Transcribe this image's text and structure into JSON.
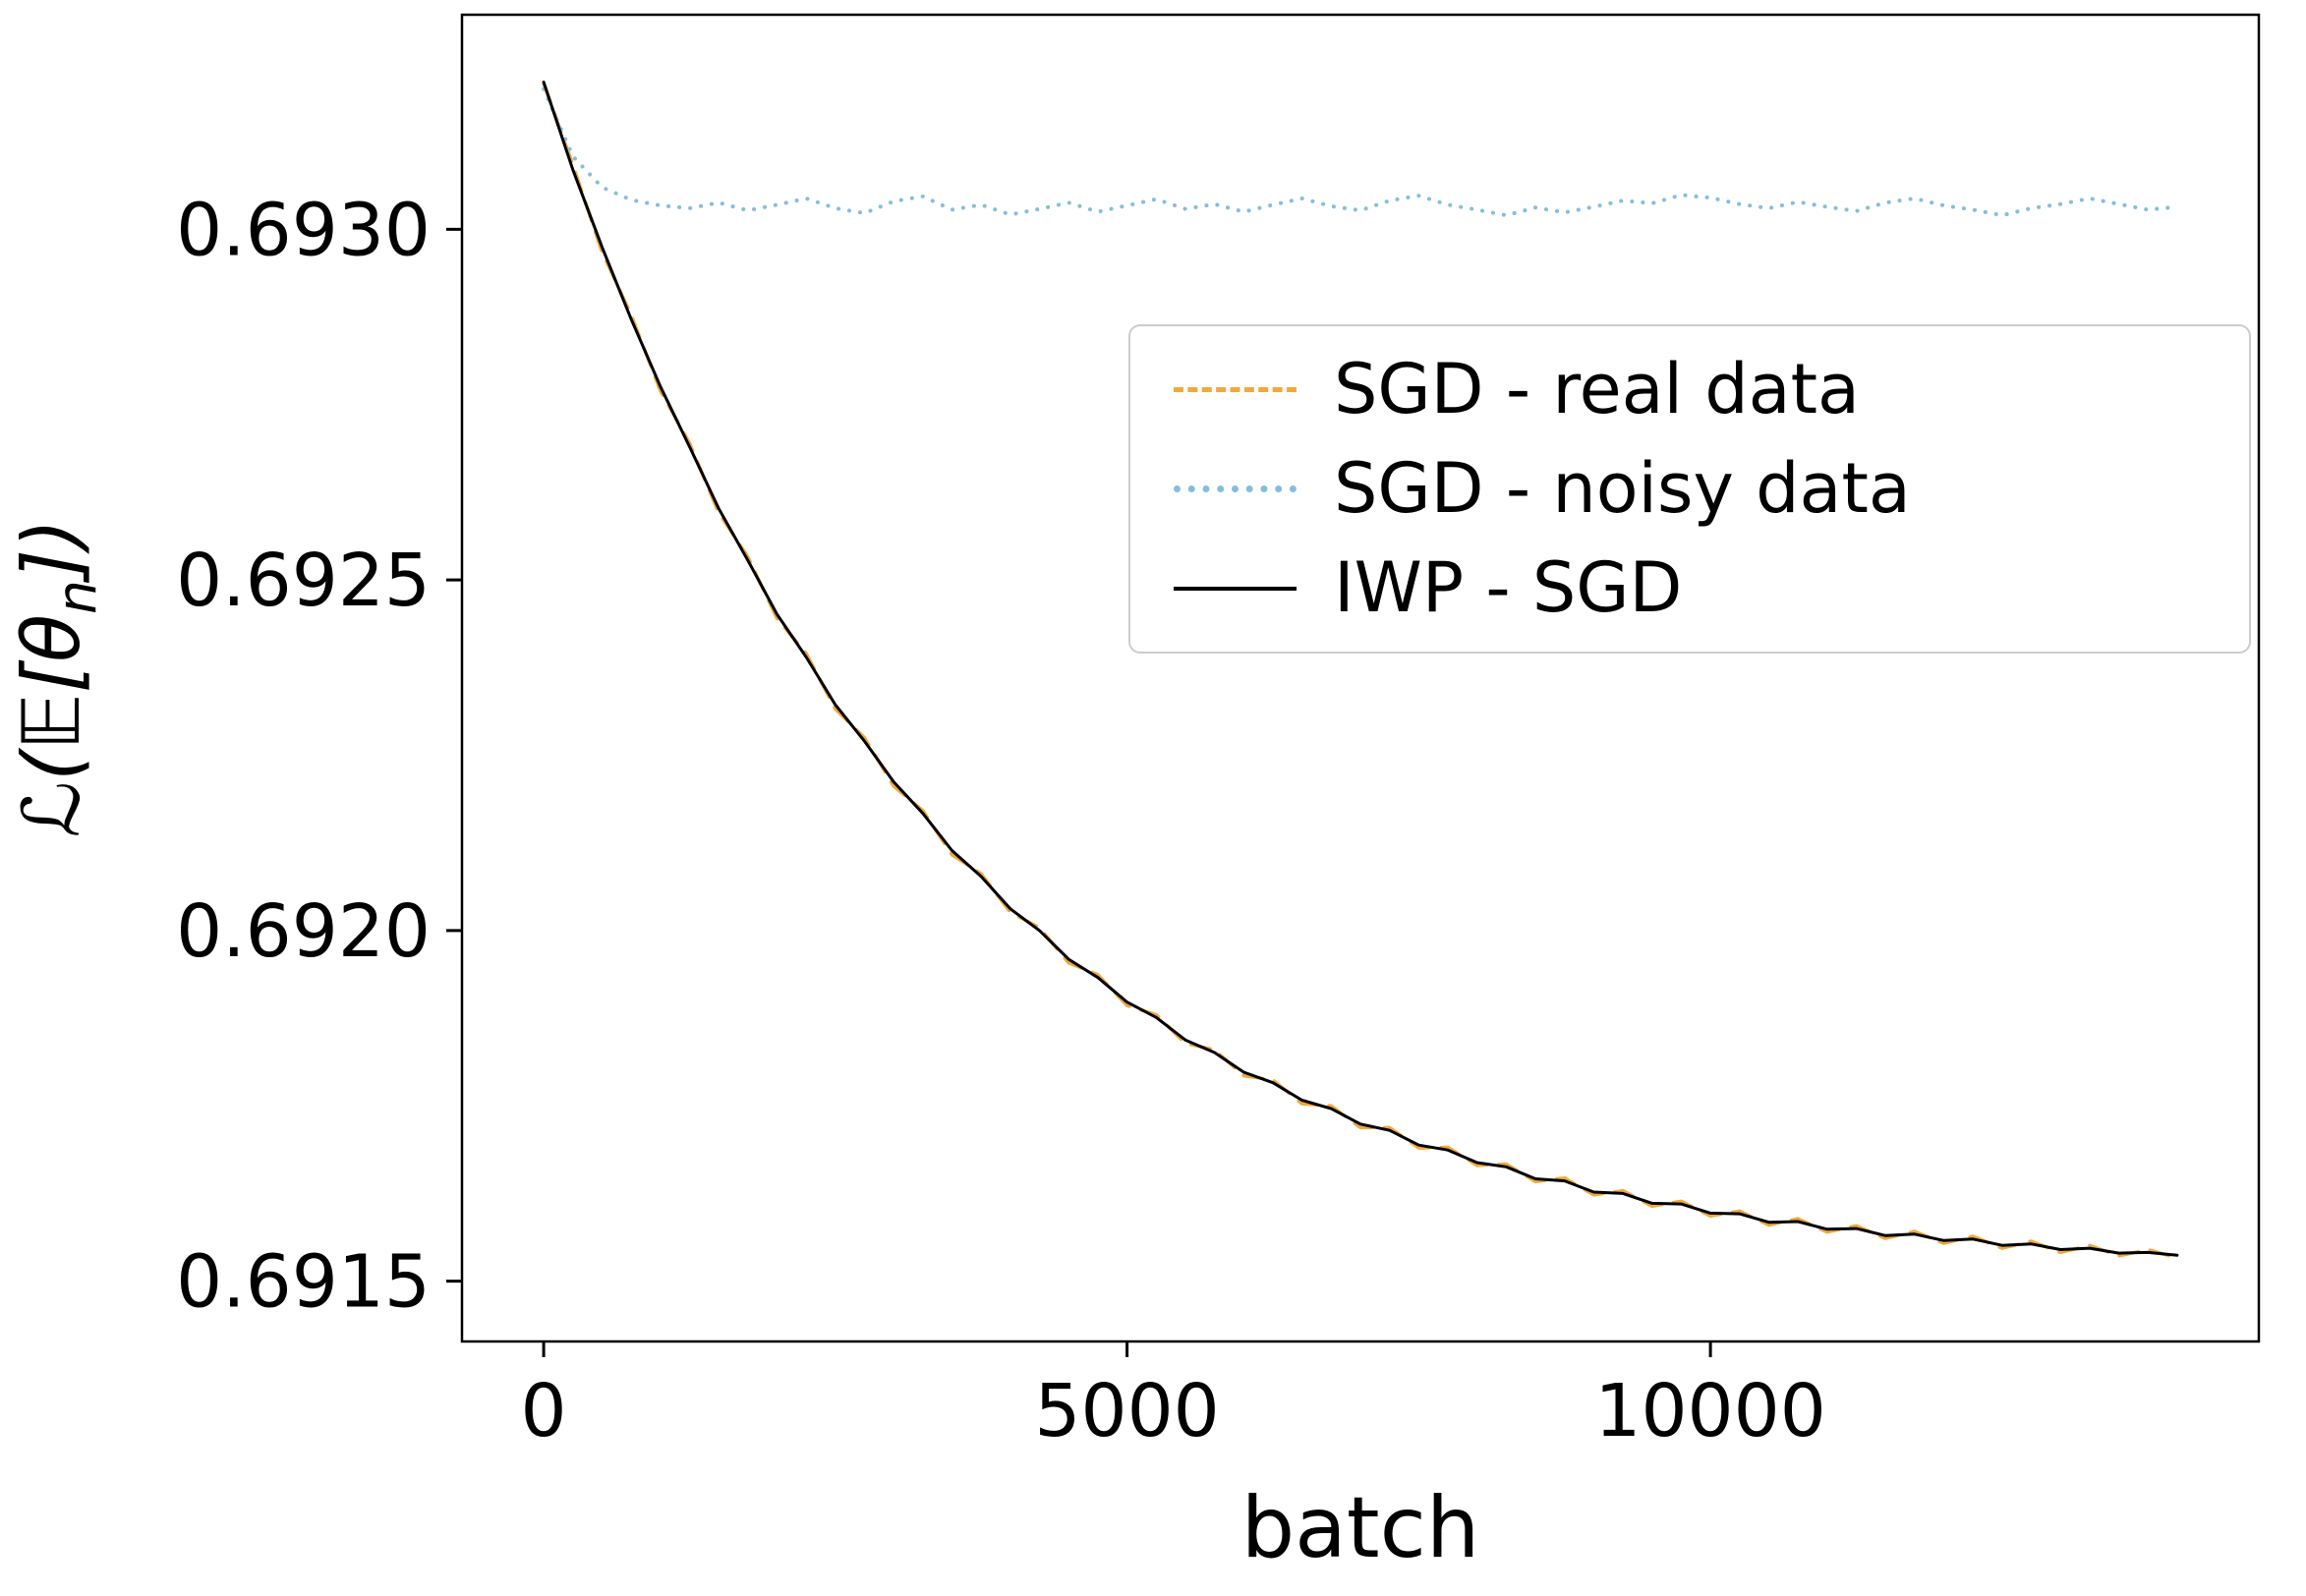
{
  "chart_data": {
    "type": "line",
    "title": "",
    "xlabel": "batch",
    "ylabel": "ℒ(𝔼[θ_n])",
    "ylabel_parts": {
      "pre": "ℒ(𝔼[θ",
      "sub": "n",
      "post": "])"
    },
    "xlim": [
      -700,
      14700
    ],
    "ylim": [
      0.691414,
      0.693306
    ],
    "grid": false,
    "legend_position": "center right",
    "x_ticks": [
      {
        "value": 0,
        "label": "0"
      },
      {
        "value": 5000,
        "label": "5000"
      },
      {
        "value": 10000,
        "label": "10000"
      }
    ],
    "y_ticks": [
      {
        "value": 0.6915,
        "label": "0.6915"
      },
      {
        "value": 0.692,
        "label": "0.6920"
      },
      {
        "value": 0.6925,
        "label": "0.6925"
      },
      {
        "value": 0.693,
        "label": "0.6930"
      }
    ],
    "x": [
      0,
      250,
      500,
      750,
      1000,
      1250,
      1500,
      1750,
      2000,
      2250,
      2500,
      2750,
      3000,
      3250,
      3500,
      3750,
      4000,
      4250,
      4500,
      4750,
      5000,
      5250,
      5500,
      5750,
      6000,
      6250,
      6500,
      6750,
      7000,
      7250,
      7500,
      7750,
      8000,
      8250,
      8500,
      8750,
      9000,
      9250,
      9500,
      9750,
      10000,
      10250,
      10500,
      10750,
      11000,
      11250,
      11500,
      11750,
      12000,
      12250,
      12500,
      12750,
      13000,
      13250,
      13500,
      13750,
      14000
    ],
    "series": [
      {
        "name": "SGD - real data",
        "color": "#f2a93b",
        "style": "dashed",
        "width": 3.5,
        "y": [
          0.693208,
          0.693092,
          0.692968,
          0.692878,
          0.69277,
          0.692695,
          0.692596,
          0.692533,
          0.692445,
          0.692395,
          0.692316,
          0.692275,
          0.692206,
          0.692171,
          0.692108,
          0.692081,
          0.692026,
          0.692004,
          0.691954,
          0.691937,
          0.691893,
          0.69188,
          0.691839,
          0.69183,
          0.691793,
          0.691787,
          0.691753,
          0.69175,
          0.691719,
          0.691719,
          0.69169,
          0.691691,
          0.691665,
          0.691667,
          0.691642,
          0.691647,
          0.691623,
          0.691629,
          0.691607,
          0.691614,
          0.691593,
          0.6916,
          0.69158,
          0.691589,
          0.69157,
          0.691579,
          0.691561,
          0.691571,
          0.691554,
          0.691564,
          0.691547,
          0.691557,
          0.691541,
          0.691551,
          0.691536,
          0.691545,
          0.691533
        ]
      },
      {
        "name": "SGD - noisy data",
        "color": "#85bedd",
        "style": "dotted",
        "width": 4,
        "y": [
          0.6932,
          0.693104,
          0.69306,
          0.693042,
          0.693034,
          0.69303,
          0.693038,
          0.693027,
          0.693035,
          0.693044,
          0.69303,
          0.693023,
          0.69304,
          0.693047,
          0.693028,
          0.693035,
          0.693021,
          0.693029,
          0.693038,
          0.693025,
          0.693034,
          0.693043,
          0.693029,
          0.693036,
          0.693025,
          0.693035,
          0.693044,
          0.693033,
          0.693027,
          0.693041,
          0.693048,
          0.693035,
          0.693028,
          0.69302,
          0.693031,
          0.693024,
          0.693032,
          0.693041,
          0.693037,
          0.693049,
          0.693045,
          0.693036,
          0.69303,
          0.693039,
          0.693032,
          0.693026,
          0.693038,
          0.693044,
          0.693034,
          0.693028,
          0.69302,
          0.69303,
          0.693036,
          0.693044,
          0.693036,
          0.693028,
          0.693032
        ]
      },
      {
        "name": "IWP - SGD",
        "color": "#000000",
        "style": "solid",
        "width": 3,
        "y": [
          0.69321,
          0.693085,
          0.692975,
          0.692872,
          0.692776,
          0.69269,
          0.692602,
          0.692528,
          0.692451,
          0.69239,
          0.692322,
          0.69227,
          0.692212,
          0.692167,
          0.692114,
          0.692077,
          0.692031,
          0.692,
          0.691959,
          0.691933,
          0.691898,
          0.691876,
          0.691844,
          0.691826,
          0.691798,
          0.691783,
          0.691758,
          0.691746,
          0.691724,
          0.691715,
          0.691694,
          0.691687,
          0.691669,
          0.691663,
          0.691646,
          0.691643,
          0.691627,
          0.691625,
          0.691611,
          0.69161,
          0.691597,
          0.691596,
          0.691584,
          0.691585,
          0.691574,
          0.691575,
          0.691565,
          0.691567,
          0.691558,
          0.69156,
          0.691551,
          0.691553,
          0.691545,
          0.691547,
          0.69154,
          0.691541,
          0.691537
        ]
      }
    ]
  }
}
